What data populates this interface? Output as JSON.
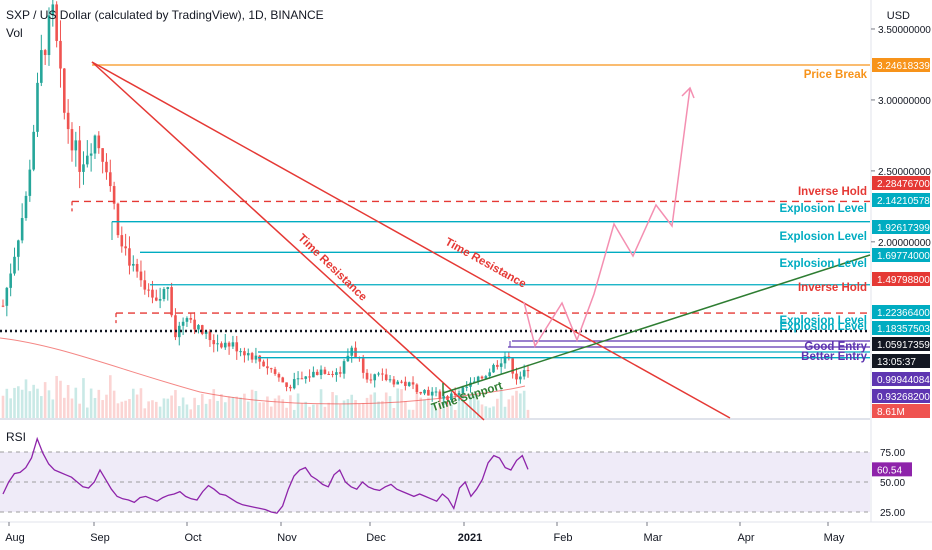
{
  "header": {
    "title": "SXP / US Dollar (calculated by TradingView), 1D, BINANCE",
    "vol_label": "Vol",
    "rsi_label": "RSI",
    "currency": "USD"
  },
  "colors": {
    "candle_up": "#26a69a",
    "candle_down": "#ef5350",
    "orange": "#f7931a",
    "red": "#e53935",
    "teal": "#00acc1",
    "green": "#2e7d32",
    "purple": "#5e35b1",
    "rsi": "#8e24aa",
    "pink": "#f48fb1"
  },
  "chart_data": [
    {
      "type": "candlestick",
      "title": "SXP / US Dollar (calculated by TradingView), 1D, BINANCE",
      "price_axis": {
        "ticks": [
          3.5,
          3.0,
          2.5,
          2.0
        ],
        "tick_labels": [
          "3.50000000",
          "3.00000000",
          "2.50000000",
          "2.00000000"
        ],
        "range": [
          0.74,
          3.72
        ]
      },
      "time_axis": {
        "labels": [
          "Aug",
          "Sep",
          "Oct",
          "Nov",
          "Dec",
          "2021",
          "Feb",
          "Mar",
          "Apr",
          "May"
        ]
      },
      "price_markers": [
        {
          "label": "3.24618339",
          "value": 3.24618339,
          "color": "#f7931a"
        },
        {
          "label": "2.28476700",
          "value": 2.284767,
          "color": "#e53935"
        },
        {
          "label": "2.14210578",
          "value": 2.14210578,
          "color": "#00acc1"
        },
        {
          "label": "1.92617399",
          "value": 1.92617399,
          "color": "#00acc1"
        },
        {
          "label": "1.69774000",
          "value": 1.69774,
          "color": "#00acc1"
        },
        {
          "label": "1.49798800",
          "value": 1.497988,
          "color": "#e53935"
        },
        {
          "label": "1.22366400",
          "value": 1.223664,
          "color": "#00acc1"
        },
        {
          "label": "1.18357503",
          "value": 1.18357503,
          "color": "#00acc1"
        },
        {
          "label": "1.05917359",
          "value": 1.05917359,
          "color": "#131722"
        },
        {
          "label": "13:05:37",
          "value": null,
          "color": "#131722"
        },
        {
          "label": "0.99944084",
          "value": 0.99944084,
          "color": "#5e35b1"
        },
        {
          "label": "0.93268200",
          "value": 0.932682,
          "color": "#5e35b1"
        },
        {
          "label": "8.61M",
          "value": null,
          "color": "#ef5350"
        }
      ],
      "levels": [
        {
          "name": "Price Break",
          "value": 3.24618339,
          "style": "solid",
          "color": "#f7931a"
        },
        {
          "name": "Inverse Hold",
          "value": 2.284767,
          "style": "dashed",
          "color": "#e53935"
        },
        {
          "name": "Explosion Level",
          "value": 2.14210578,
          "style": "solid",
          "color": "#00acc1"
        },
        {
          "name": "Explosion Level",
          "value": 1.92617399,
          "style": "solid",
          "color": "#00acc1"
        },
        {
          "name": "Explosion Level",
          "value": 1.69774,
          "style": "solid",
          "color": "#00acc1"
        },
        {
          "name": "Inverse Hold",
          "value": 1.497988,
          "style": "dashed",
          "color": "#e53935"
        },
        {
          "name": "Explosion Level",
          "value": 1.223664,
          "style": "solid",
          "color": "#00acc1"
        },
        {
          "name": "Explosion Level",
          "value": 1.18357503,
          "style": "solid",
          "color": "#00acc1"
        },
        {
          "name": "",
          "value": 1.1,
          "style": "dotted",
          "color": "#131722"
        },
        {
          "name": "Good Entry",
          "value": 0.99944084,
          "style": "solid",
          "color": "#5e35b1"
        },
        {
          "name": "Better Entry",
          "value": 0.932682,
          "style": "solid",
          "color": "#5e35b1"
        }
      ],
      "annotations": [
        "Time Resistance",
        "Time Resistance",
        "Time Support"
      ]
    },
    {
      "type": "line",
      "title": "RSI",
      "y_ticks": [
        75,
        50,
        25
      ],
      "y_tick_labels": [
        "75.00",
        "50.00",
        "25.00"
      ],
      "current_value_label": "60.54",
      "values": [
        40,
        50,
        57,
        58,
        62,
        70,
        86,
        74,
        65,
        60,
        58,
        56,
        54,
        50,
        46,
        45,
        50,
        60,
        52,
        44,
        38,
        36,
        35,
        33,
        37,
        38,
        36,
        34,
        37,
        39,
        40,
        42,
        38,
        36,
        35,
        42,
        47,
        44,
        40,
        39,
        36,
        33,
        31,
        30,
        29,
        28,
        27,
        25,
        24,
        30,
        44,
        55,
        60,
        62,
        55,
        52,
        48,
        46,
        56,
        60,
        50,
        46,
        44,
        50,
        46,
        44,
        43,
        46,
        48,
        44,
        42,
        40,
        38,
        40,
        38,
        36,
        34,
        40,
        36,
        28,
        45,
        50,
        38,
        44,
        52,
        66,
        72,
        70,
        62,
        60,
        68,
        72,
        60.54
      ]
    }
  ]
}
